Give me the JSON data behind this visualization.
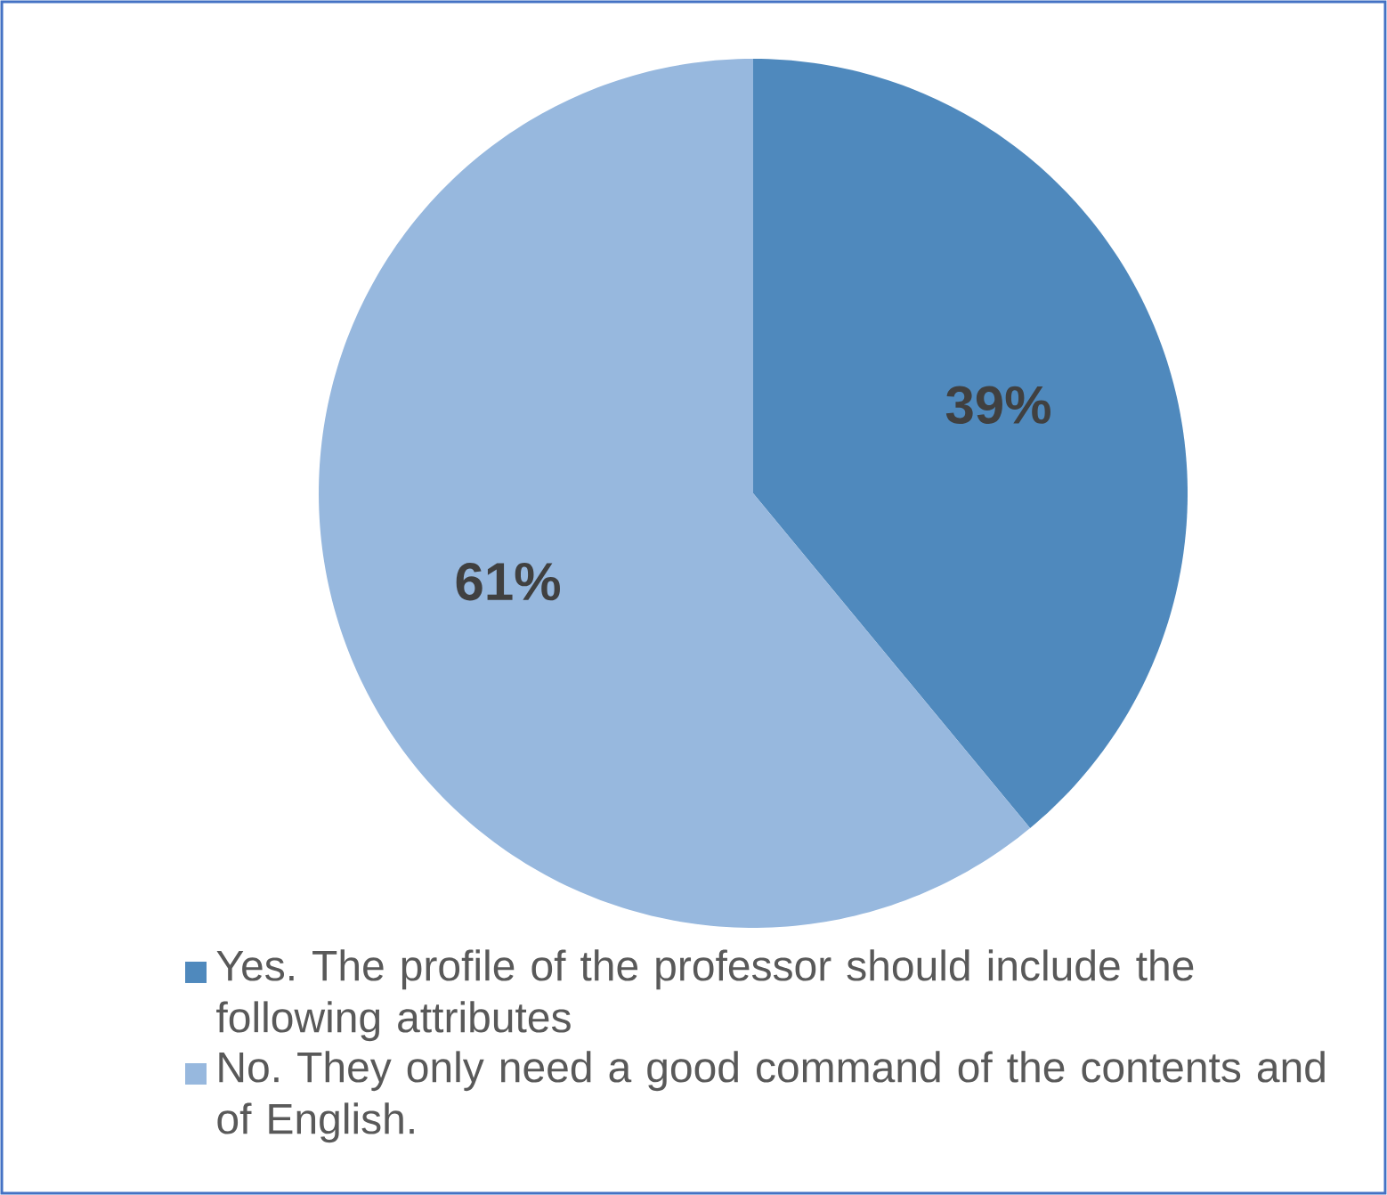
{
  "chart_data": {
    "type": "pie",
    "categories": [
      "Yes. The profile of the professor should include the following attributes",
      "No. They only need a good command of the contents and of English."
    ],
    "values": [
      39,
      61
    ],
    "colors": [
      "#4f89bd",
      "#97b8de"
    ],
    "value_labels": [
      "39%",
      "61%"
    ],
    "legend": "bottom"
  }
}
